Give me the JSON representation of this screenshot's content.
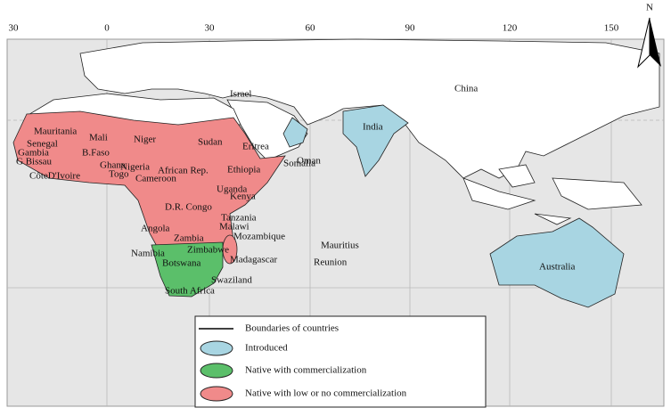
{
  "longitude_labels": [
    "30",
    "0",
    "30",
    "60",
    "90",
    "120",
    "150"
  ],
  "north": "N",
  "country_labels": [
    "Mauritania",
    "Mali",
    "Niger",
    "Sudan",
    "Eritrea",
    "Oman",
    "India",
    "China",
    "Israel",
    "Senegal",
    "Gambia",
    "G Bissau",
    "B.Faso",
    "Ghana",
    "Togo",
    "Nigeria",
    "African Rep.",
    "Ethiopia",
    "Somalia",
    "CôteD'Ivoire",
    "Cameroon",
    "Uganda",
    "Kenya",
    "D.R. Congo",
    "Tanzania",
    "Malawi",
    "Angola",
    "Mozambique",
    "Zambia",
    "Mauritius",
    "Zimbabwe",
    "Madagascar",
    "Reunion",
    "Namibia",
    "Botswana",
    "Swaziland",
    "South Africa",
    "Australia"
  ],
  "legend": [
    "Boundaries of countries",
    "Introduced",
    "Native with commercialization",
    "Native with low or no commercialization"
  ]
}
